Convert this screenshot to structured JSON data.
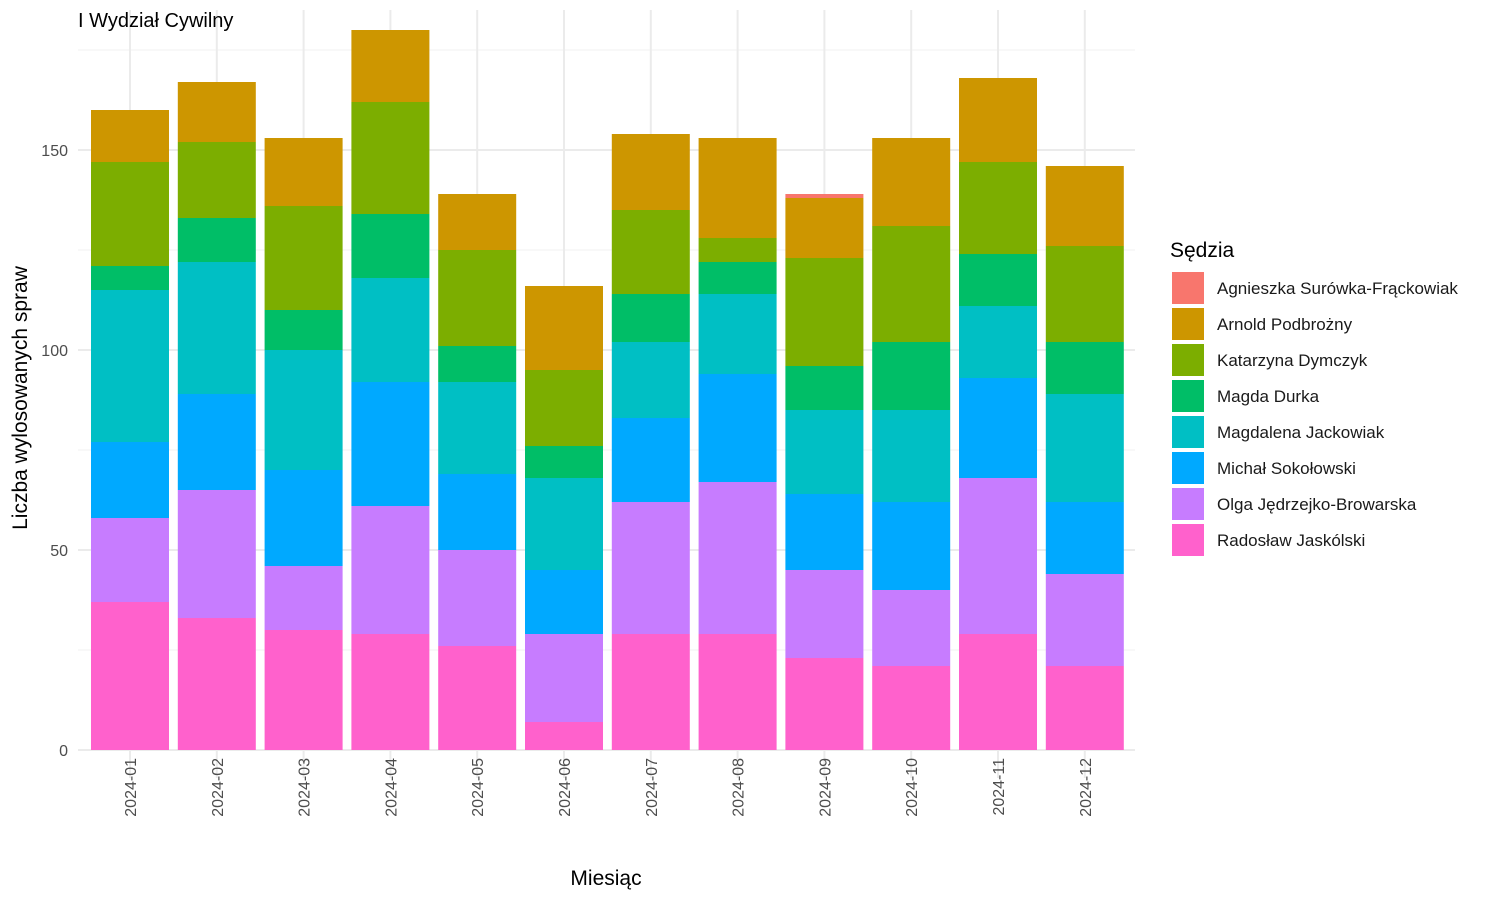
{
  "chart_data": {
    "type": "bar",
    "stacked": true,
    "title": "I Wydział Cywilny",
    "xlabel": "Miesiąc",
    "ylabel": "Liczba wylosowanych spraw",
    "ylim": [
      0,
      185
    ],
    "yticks": [
      0,
      50,
      100,
      150
    ],
    "grid": true,
    "legend_title": "Sędzia",
    "legend_position": "right",
    "categories": [
      "2024-01",
      "2024-02",
      "2024-03",
      "2024-04",
      "2024-05",
      "2024-06",
      "2024-07",
      "2024-08",
      "2024-09",
      "2024-10",
      "2024-11",
      "2024-12"
    ],
    "series": [
      {
        "name": "Agnieszka Surówka-Frąckowiak",
        "color": "#F8766D",
        "values": [
          0,
          0,
          0,
          0,
          0,
          0,
          0,
          0,
          1,
          0,
          0,
          0
        ]
      },
      {
        "name": "Arnold Podbrożny",
        "color": "#CD9600",
        "values": [
          13,
          15,
          17,
          18,
          14,
          21,
          19,
          25,
          15,
          22,
          21,
          20
        ]
      },
      {
        "name": "Katarzyna Dymczyk",
        "color": "#7CAE00",
        "values": [
          26,
          19,
          26,
          28,
          24,
          19,
          21,
          6,
          27,
          29,
          23,
          24
        ]
      },
      {
        "name": "Magda Durka",
        "color": "#00BE67",
        "values": [
          6,
          11,
          10,
          16,
          9,
          8,
          12,
          8,
          11,
          17,
          13,
          13
        ]
      },
      {
        "name": "Magdalena Jackowiak",
        "color": "#00BFC4",
        "values": [
          38,
          33,
          30,
          26,
          23,
          23,
          19,
          20,
          21,
          23,
          18,
          27
        ]
      },
      {
        "name": "Michał Sokołowski",
        "color": "#00A9FF",
        "values": [
          19,
          24,
          24,
          31,
          19,
          16,
          21,
          27,
          19,
          22,
          25,
          18
        ]
      },
      {
        "name": "Olga Jędrzejko-Browarska",
        "color": "#C77CFF",
        "values": [
          21,
          32,
          16,
          32,
          24,
          22,
          33,
          38,
          22,
          19,
          39,
          23
        ]
      },
      {
        "name": "Radosław Jaskólski",
        "color": "#FF61CC",
        "values": [
          37,
          33,
          30,
          29,
          26,
          7,
          29,
          29,
          23,
          21,
          29,
          21
        ]
      }
    ]
  }
}
